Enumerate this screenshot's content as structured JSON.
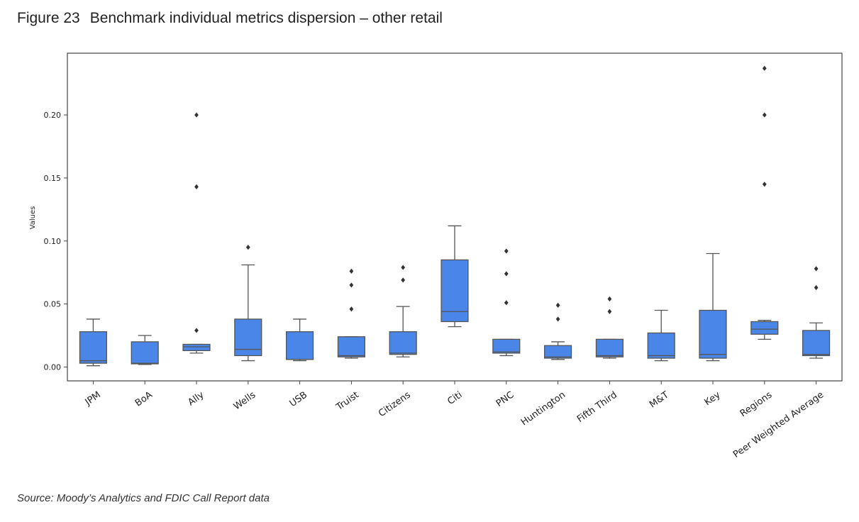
{
  "figure": {
    "number": "Figure 23",
    "title": "Benchmark individual metrics dispersion – other retail",
    "source": "Source: Moody’s Analytics and FDIC Call Report data"
  },
  "chart_data": {
    "type": "box",
    "title": "",
    "xlabel": "",
    "ylabel": "Values",
    "ylim": [
      -0.011,
      0.249
    ],
    "yticks": [
      0.0,
      0.05,
      0.1,
      0.15,
      0.2
    ],
    "ytick_labels": [
      "0.00",
      "0.05",
      "0.10",
      "0.15",
      "0.20"
    ],
    "grid": false,
    "box_color": "#4a86e8",
    "categories": [
      "JPM",
      "BoA",
      "Ally",
      "Wells",
      "USB",
      "Truist",
      "Citizens",
      "Citi",
      "PNC",
      "Huntington",
      "Fifth Third",
      "M&T",
      "Key",
      "Regions",
      "Peer Weighted Average"
    ],
    "boxes": [
      {
        "whislo": 0.001,
        "q1": 0.003,
        "med": 0.005,
        "q3": 0.028,
        "whishi": 0.038,
        "fliers": []
      },
      {
        "whislo": 0.002,
        "q1": 0.0025,
        "med": 0.003,
        "q3": 0.02,
        "whishi": 0.025,
        "fliers": []
      },
      {
        "whislo": 0.011,
        "q1": 0.013,
        "med": 0.016,
        "q3": 0.018,
        "whishi": 0.018,
        "fliers": [
          0.029,
          0.143,
          0.2
        ]
      },
      {
        "whislo": 0.005,
        "q1": 0.009,
        "med": 0.014,
        "q3": 0.038,
        "whishi": 0.081,
        "fliers": [
          0.095
        ]
      },
      {
        "whislo": 0.005,
        "q1": 0.006,
        "med": 0.006,
        "q3": 0.028,
        "whishi": 0.038,
        "fliers": []
      },
      {
        "whislo": 0.007,
        "q1": 0.008,
        "med": 0.009,
        "q3": 0.024,
        "whishi": 0.024,
        "fliers": [
          0.046,
          0.065,
          0.076
        ]
      },
      {
        "whislo": 0.008,
        "q1": 0.01,
        "med": 0.011,
        "q3": 0.028,
        "whishi": 0.048,
        "fliers": [
          0.069,
          0.079
        ]
      },
      {
        "whislo": 0.032,
        "q1": 0.036,
        "med": 0.044,
        "q3": 0.085,
        "whishi": 0.112,
        "fliers": []
      },
      {
        "whislo": 0.009,
        "q1": 0.011,
        "med": 0.012,
        "q3": 0.022,
        "whishi": 0.022,
        "fliers": [
          0.051,
          0.074,
          0.092
        ]
      },
      {
        "whislo": 0.006,
        "q1": 0.007,
        "med": 0.008,
        "q3": 0.017,
        "whishi": 0.02,
        "fliers": [
          0.038,
          0.049
        ]
      },
      {
        "whislo": 0.007,
        "q1": 0.008,
        "med": 0.009,
        "q3": 0.022,
        "whishi": 0.022,
        "fliers": [
          0.044,
          0.054
        ]
      },
      {
        "whislo": 0.005,
        "q1": 0.007,
        "med": 0.009,
        "q3": 0.027,
        "whishi": 0.045,
        "fliers": []
      },
      {
        "whislo": 0.005,
        "q1": 0.007,
        "med": 0.01,
        "q3": 0.045,
        "whishi": 0.09,
        "fliers": []
      },
      {
        "whislo": 0.022,
        "q1": 0.026,
        "med": 0.03,
        "q3": 0.036,
        "whishi": 0.037,
        "fliers": [
          0.145,
          0.2,
          0.237
        ]
      },
      {
        "whislo": 0.007,
        "q1": 0.009,
        "med": 0.01,
        "q3": 0.029,
        "whishi": 0.035,
        "fliers": [
          0.063,
          0.078
        ]
      }
    ]
  }
}
